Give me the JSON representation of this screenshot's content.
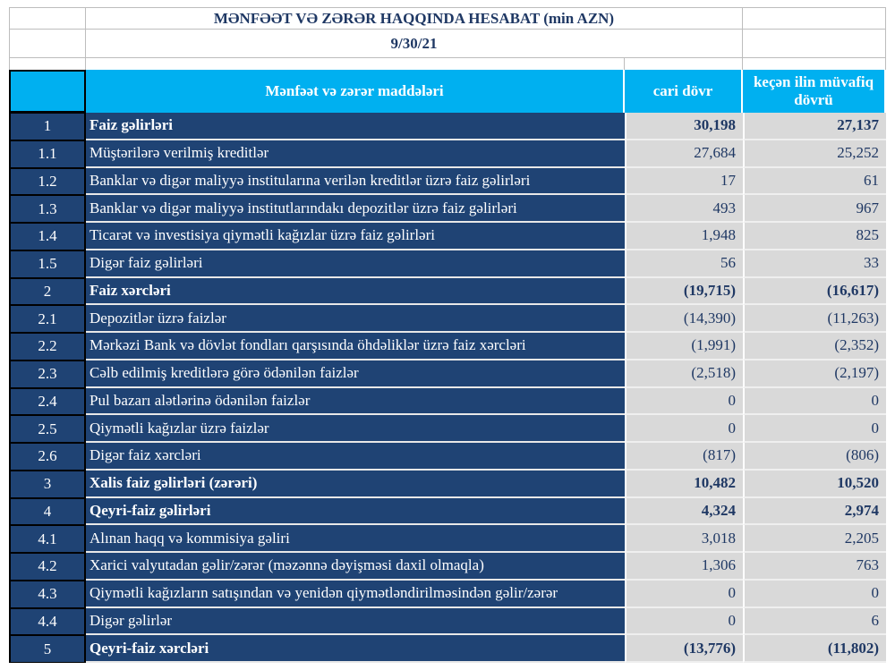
{
  "report": {
    "title": "MƏNFƏƏT VƏ ZƏRƏR HAQQINDA HESABAT (min AZN)",
    "date": "9/30/21"
  },
  "columns": {
    "item": "Mənfəət və zərər maddələri",
    "current": "cari dövr",
    "previous": "keçən ilin müvafiq dövrü"
  },
  "colors": {
    "header": "#00b0f0",
    "row_bg": "#1f4374",
    "value_bg": "#d9d9d9",
    "text": "#1f3864"
  },
  "rows": [
    {
      "num": "1",
      "label": "Faiz  gəlirləri",
      "current": "30,198",
      "previous": "27,137",
      "bold": true
    },
    {
      "num": "1.1",
      "label": "Müştərilərə verilmiş kreditlər",
      "current": "27,684",
      "previous": "25,252",
      "bold": false
    },
    {
      "num": "1.2",
      "label": "Banklar və digər maliyyə institularına verilən kreditlər üzrə faiz gəlirləri",
      "current": "17",
      "previous": "61",
      "bold": false
    },
    {
      "num": "1.3",
      "label": "Banklar və digər maliyyə institutlarındakı depozitlər üzrə faiz gəlirləri",
      "current": "493",
      "previous": "967",
      "bold": false
    },
    {
      "num": "1.4",
      "label": "Ticarət və investisiya qiymətli kağızlar üzrə faiz gəlirləri",
      "current": "1,948",
      "previous": "825",
      "bold": false
    },
    {
      "num": "1.5",
      "label": "Digər faiz gəlirləri",
      "current": "56",
      "previous": "33",
      "bold": false
    },
    {
      "num": "2",
      "label": "Faiz xərcləri",
      "current": "(19,715)",
      "previous": "(16,617)",
      "bold": true
    },
    {
      "num": "2.1",
      "label": "Depozitlər üzrə faizlər",
      "current": "(14,390)",
      "previous": "(11,263)",
      "bold": false
    },
    {
      "num": "2.2",
      "label": "Mərkəzi Bank və dövlət fondları qarşısında öhdəliklər üzrə faiz xərcləri",
      "current": "(1,991)",
      "previous": "(2,352)",
      "bold": false
    },
    {
      "num": "2.3",
      "label": "Cəlb edilmiş kreditlərə görə ödənilən faizlər",
      "current": "(2,518)",
      "previous": "(2,197)",
      "bold": false
    },
    {
      "num": "2.4",
      "label": "Pul bazarı alətlərinə ödənilən faizlər",
      "current": "0",
      "previous": "0",
      "bold": false
    },
    {
      "num": "2.5",
      "label": "Qiymətli kağızlar üzrə faizlər",
      "current": "0",
      "previous": "0",
      "bold": false
    },
    {
      "num": "2.6",
      "label": "Digər faiz xərcləri",
      "current": "(817)",
      "previous": "(806)",
      "bold": false
    },
    {
      "num": "3",
      "label": "Xalis faiz gəlirləri (zərəri)",
      "current": "10,482",
      "previous": "10,520",
      "bold": true
    },
    {
      "num": "4",
      "label": "Qeyri-faiz gəlirləri",
      "current": "4,324",
      "previous": "2,974",
      "bold": true
    },
    {
      "num": "4.1",
      "label": "Alınan haqq və kommisiya gəliri",
      "current": "3,018",
      "previous": "2,205",
      "bold": false
    },
    {
      "num": "4.2",
      "label": "Xarici valyutadan gəlir/zərər (məzənnə dəyişməsi daxil olmaqla)",
      "current": "1,306",
      "previous": "763",
      "bold": false
    },
    {
      "num": "4.3",
      "label": "Qiymətli kağızların satışından və yenidən qiymətləndirilməsindən gəlir/zərər",
      "current": "0",
      "previous": "0",
      "bold": false
    },
    {
      "num": "4.4",
      "label": "Digər gəlirlər",
      "current": "0",
      "previous": "6",
      "bold": false
    },
    {
      "num": "5",
      "label": "Qeyri-faiz xərcləri",
      "current": "(13,776)",
      "previous": "(11,802)",
      "bold": true
    }
  ]
}
